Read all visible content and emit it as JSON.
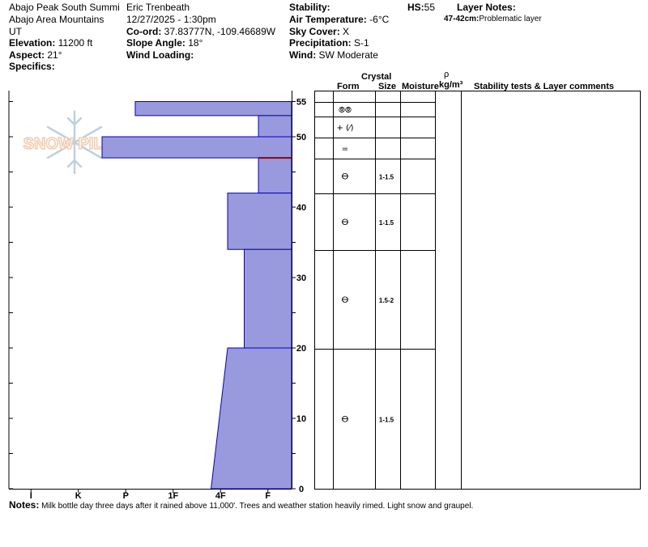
{
  "header": {
    "col1": {
      "location": "Abajo Peak South Summi",
      "range": "Abajo Area Mountains",
      "state": "UT",
      "elevation_label": "Elevation:",
      "elevation_value": " 11200 ft",
      "aspect_label": "Aspect:",
      "aspect_value": " 21°",
      "specifics_label": "Specifics:"
    },
    "col2": {
      "observer": "Eric Trenbeath",
      "datetime": "12/27/2025 - 1:30pm",
      "coord_label": "Co-ord:",
      "coord_value": " 37.83777N, -109.46689W",
      "slope_label": "Slope Angle:",
      "slope_value": " 18°",
      "wind_label": "Wind Loading:"
    },
    "col3": {
      "stability_label": "Stability:",
      "air_label": "Air Temperature:",
      "air_value": " -6°C",
      "sky_label": "Sky Cover:",
      "sky_value": " X",
      "precip_label": "Precipitation:",
      "precip_value": " S-1",
      "wind_label": "Wind:",
      "wind_value": "  SW Moderate"
    },
    "hs_label": "HS:",
    "hs_value": "55",
    "layer_notes_label": "Layer Notes:",
    "layer_note_range": "47-42cm:",
    "layer_note_text": "Problematic layer"
  },
  "table_headers": {
    "crystal": "Crystal",
    "form": "Form",
    "size": "Size",
    "moisture": "Moisture",
    "rho": "ρ",
    "density_unit": "kg/m³",
    "comments": "Stability tests & Layer comments"
  },
  "watermark": "SNOW PILOT",
  "notes_label": "Notes:",
  "notes_text": " Milk bottle day three days after it rained above 11,000'. Trees and weather station heavily rimed. Light snow and graupel.",
  "chart_data": {
    "type": "bar",
    "orientation": "horizontal",
    "xlabel": "",
    "ylabel": "",
    "x_categories": [
      "I",
      "K",
      "P",
      "1F",
      "4F",
      "F"
    ],
    "y_axis": {
      "range": [
        0,
        55
      ],
      "ticks": [
        0,
        10,
        20,
        30,
        40,
        50,
        55
      ],
      "minor_step": 5
    },
    "hardness_scale": {
      "F": 0,
      "4F": 1,
      "1F": 2,
      "P": 3,
      "K": 4,
      "I": 5
    },
    "fill_color": "#9999DD",
    "edge_color": "#0000CC",
    "layers": [
      {
        "top": 55,
        "bottom": 53,
        "hardness_top": 3.3,
        "hardness_bottom": 3.3,
        "form": "⦾⦾",
        "size": "",
        "boundary": "line"
      },
      {
        "top": 53,
        "bottom": 50,
        "hardness_top": 0.7,
        "hardness_bottom": 0.7,
        "form": "+ (⁄)",
        "size": "",
        "boundary": "line"
      },
      {
        "top": 50,
        "bottom": 47,
        "hardness_top": 4.0,
        "hardness_bottom": 4.0,
        "form": "=",
        "size": "",
        "boundary": "line"
      },
      {
        "top": 47,
        "bottom": 42,
        "hardness_top": 0.7,
        "hardness_bottom": 0.7,
        "form": "ⴱ",
        "size": "1-1.5",
        "boundary": "red"
      },
      {
        "top": 42,
        "bottom": 34,
        "hardness_top": 1.35,
        "hardness_bottom": 1.35,
        "form": "ⴱ",
        "size": "1-1.5",
        "boundary": "line"
      },
      {
        "top": 34,
        "bottom": 20,
        "hardness_top": 1.0,
        "hardness_bottom": 1.0,
        "form": "ⴱ",
        "size": "1.5-2",
        "boundary": "line"
      },
      {
        "top": 20,
        "bottom": 0,
        "hardness_top": 1.35,
        "hardness_bottom": 1.7,
        "form": "ⴱ",
        "size": "1-1.5",
        "boundary": "line"
      }
    ]
  }
}
